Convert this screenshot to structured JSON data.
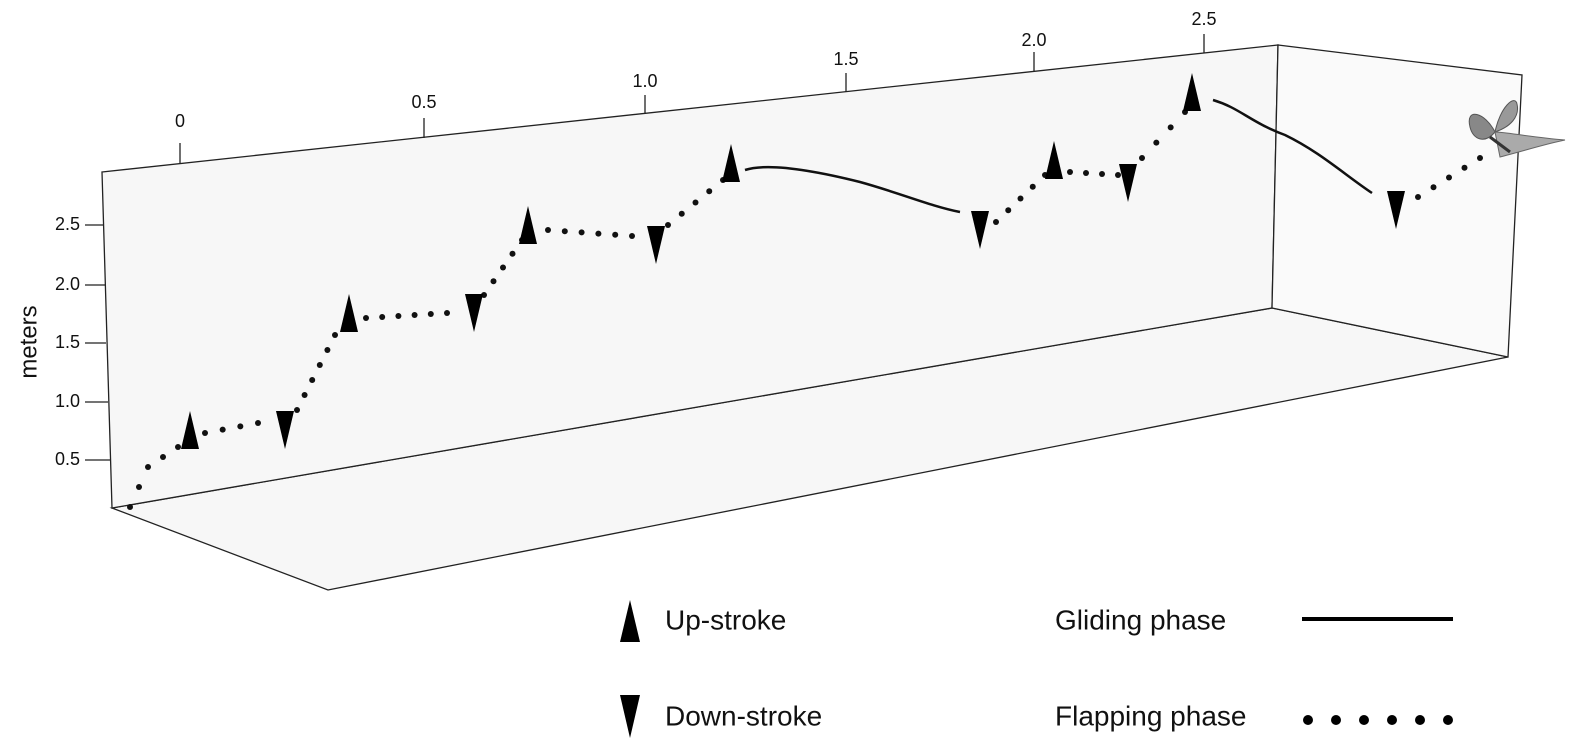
{
  "x_axis": {
    "ticks": [
      "0",
      "0.5",
      "1.0",
      "1.5",
      "2.0",
      "2.5"
    ]
  },
  "y_axis": {
    "label": "meters",
    "ticks": [
      "2.5",
      "2.0",
      "1.5",
      "1.0",
      "0.5"
    ]
  },
  "legend": {
    "items": [
      "Up-stroke",
      "Down-stroke",
      "Gliding phase",
      "Flapping phase"
    ]
  }
}
